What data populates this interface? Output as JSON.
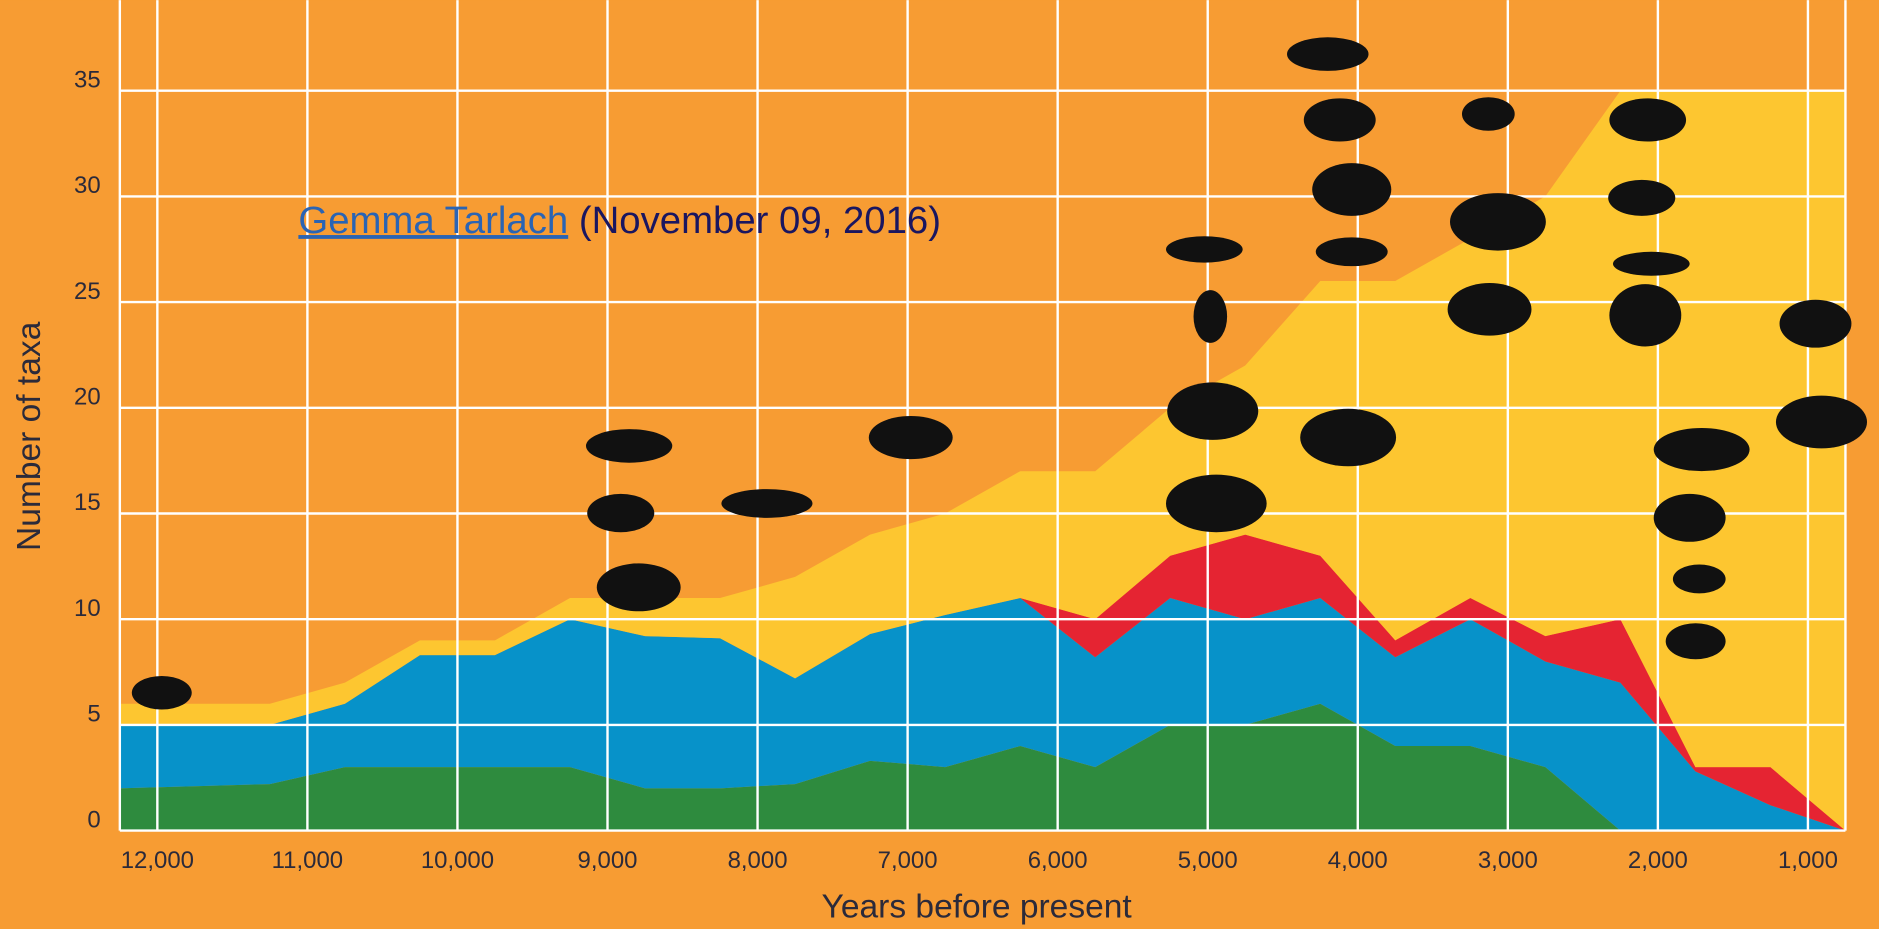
{
  "chart_data": {
    "type": "stacked-area",
    "x_label": "Years before present",
    "y_label": "Number of taxa",
    "x": [
      12250,
      11750,
      11250,
      10750,
      10250,
      9750,
      9250,
      8750,
      8250,
      7750,
      7250,
      6750,
      6250,
      5750,
      5250,
      4750,
      4250,
      3750,
      3250,
      2750,
      2250,
      1750,
      1250,
      750
    ],
    "series": [
      {
        "color": "#2e8b3e",
        "values": [
          2,
          2.1,
          2.2,
          3,
          3,
          3,
          3,
          2,
          2,
          2.2,
          3.3,
          3,
          4,
          3,
          5,
          5,
          6,
          4,
          4,
          3,
          0,
          0,
          0,
          0
        ]
      },
      {
        "color": "#0792c9",
        "values": [
          3,
          2.9,
          2.8,
          3,
          5.3,
          5.3,
          7,
          7.2,
          7.1,
          5,
          6,
          7.2,
          7,
          5.2,
          6,
          5,
          5,
          4.2,
          6,
          5,
          7,
          2.8,
          1.2,
          0
        ]
      },
      {
        "color": "#e52432",
        "values": [
          0,
          0,
          0,
          0,
          0,
          0,
          0,
          0,
          0,
          0,
          0,
          0,
          0,
          1.8,
          2,
          4,
          2,
          0.8,
          1,
          1.2,
          3,
          0.2,
          1.8,
          0
        ]
      },
      {
        "color": "#fdc630",
        "values": [
          1,
          1,
          1,
          1,
          0.7,
          0.7,
          1,
          1.8,
          1.9,
          4.8,
          4.7,
          4.8,
          6,
          7,
          7,
          8,
          13,
          17,
          17,
          20.8,
          25,
          32,
          32,
          35
        ]
      }
    ],
    "xlim": [
      12250,
      750
    ],
    "xticks": [
      {
        "value": 12000,
        "label": "12,000"
      },
      {
        "value": 11000,
        "label": "11,000"
      },
      {
        "value": 10000,
        "label": "10,000"
      },
      {
        "value": 9000,
        "label": "9,000"
      },
      {
        "value": 8000,
        "label": "8,000"
      },
      {
        "value": 7000,
        "label": "7,000"
      },
      {
        "value": 6000,
        "label": "6,000"
      },
      {
        "value": 5000,
        "label": "5,000"
      },
      {
        "value": 4000,
        "label": "4,000"
      },
      {
        "value": 3000,
        "label": "3,000"
      },
      {
        "value": 2000,
        "label": "2,000"
      },
      {
        "value": 1000,
        "label": "1,000"
      }
    ],
    "ylim": [
      0,
      39
    ],
    "yticks": [
      0,
      5,
      10,
      15,
      20,
      25,
      30,
      35
    ],
    "grid": true
  },
  "credit": {
    "author": "Gemma Tarlach",
    "date": "(November 09, 2016)"
  }
}
